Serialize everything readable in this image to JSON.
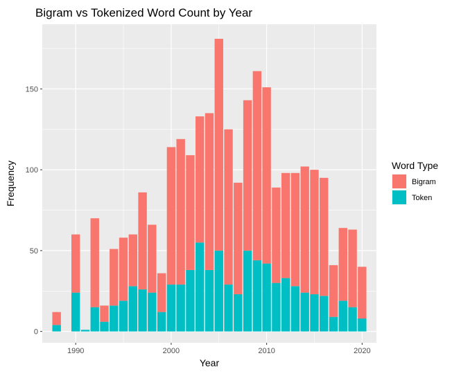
{
  "chart_data": {
    "type": "bar",
    "stacked": true,
    "title": "Bigram vs Tokenized Word Count by Year",
    "xlabel": "Year",
    "ylabel": "Frequency",
    "x": [
      1988,
      1990,
      1991,
      1992,
      1993,
      1994,
      1995,
      1996,
      1997,
      1998,
      1999,
      2000,
      2001,
      2002,
      2003,
      2004,
      2005,
      2006,
      2007,
      2008,
      2009,
      2010,
      2011,
      2012,
      2013,
      2014,
      2015,
      2016,
      2017,
      2018,
      2019,
      2020
    ],
    "xlim": [
      1986.5,
      2021.5
    ],
    "ylim": [
      -7,
      190
    ],
    "x_ticks": [
      1990,
      2000,
      2010,
      2020
    ],
    "y_ticks": [
      0,
      50,
      100,
      150
    ],
    "grid": true,
    "legend_position": "right",
    "legend": {
      "title": "Word Type"
    },
    "series": [
      {
        "name": "Token",
        "color": "#00BFC4",
        "values": [
          4,
          24,
          1,
          15,
          6,
          16,
          19,
          28,
          26,
          24,
          12,
          29,
          29,
          38,
          55,
          38,
          50,
          29,
          23,
          50,
          44,
          42,
          30,
          33,
          28,
          24,
          23,
          22,
          9,
          19,
          15,
          8
        ]
      },
      {
        "name": "Bigram",
        "color": "#F8766D",
        "values": [
          8,
          36,
          0,
          55,
          10,
          35,
          39,
          32,
          60,
          42,
          24,
          85,
          90,
          71,
          78,
          97,
          131,
          96,
          69,
          93,
          117,
          109,
          59,
          65,
          70,
          78,
          77,
          73,
          32,
          45,
          48,
          32
        ]
      }
    ],
    "legend_order": [
      "Bigram",
      "Token"
    ]
  }
}
